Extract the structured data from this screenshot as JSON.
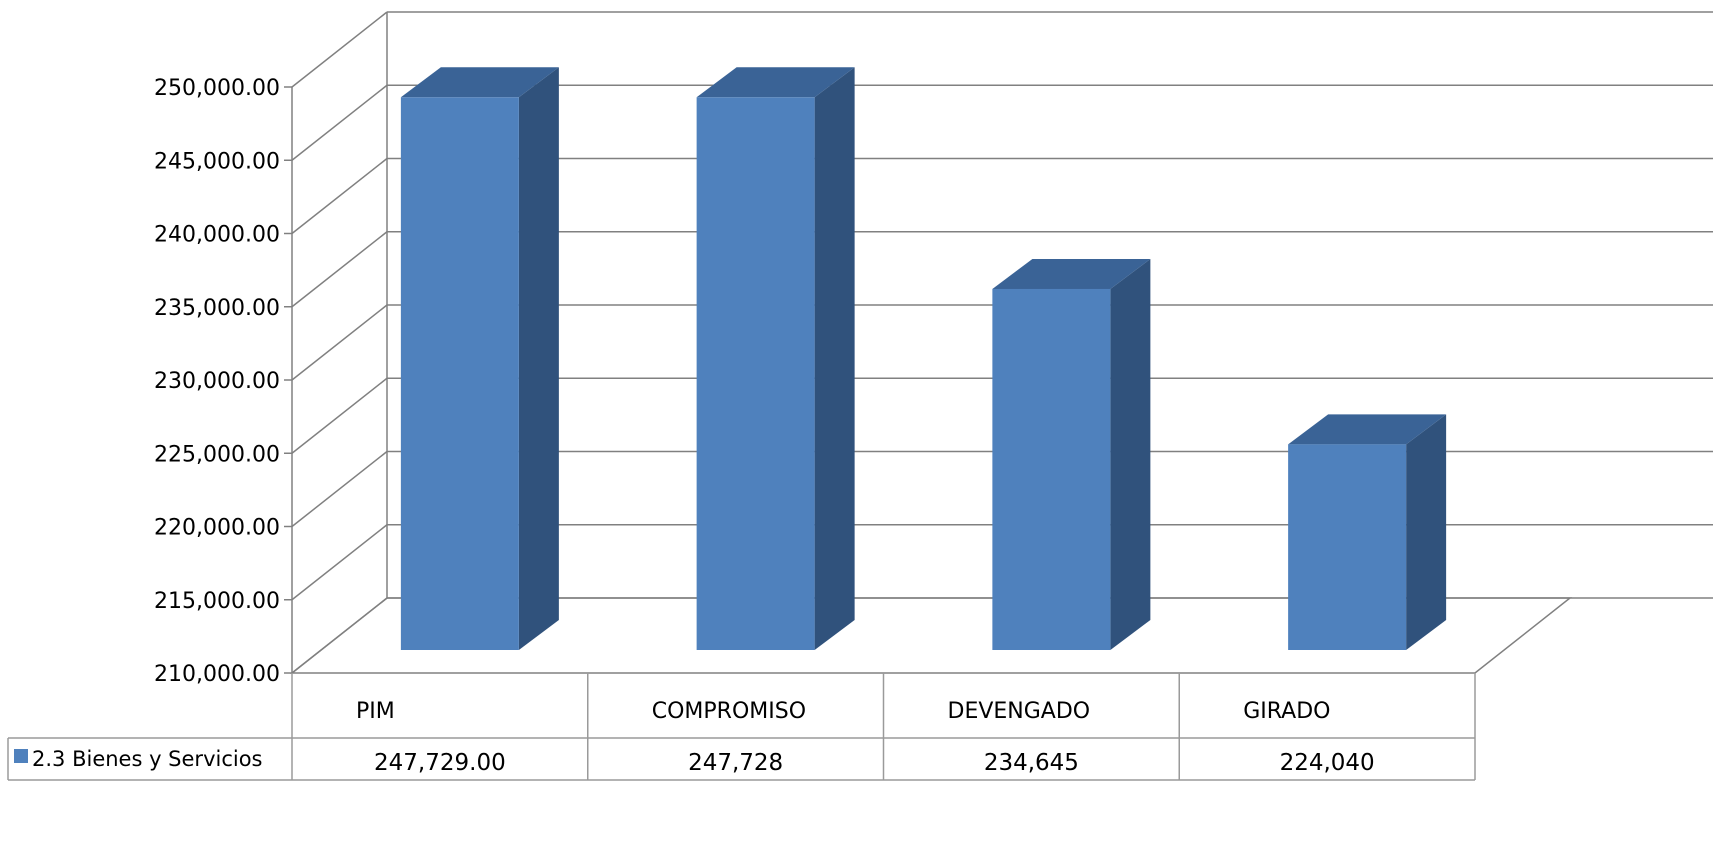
{
  "chart_data": {
    "type": "bar",
    "categories": [
      "PIM",
      "COMPROMISO",
      "DEVENGADO",
      "GIRADO"
    ],
    "series": [
      {
        "name": "2.3 Bienes y Servicios",
        "values": [
          247729,
          247728,
          234645,
          224040
        ],
        "value_labels": [
          "247,729.00",
          "247,728",
          "234,645",
          "224,040"
        ]
      }
    ],
    "ylim": [
      210000,
      250000
    ],
    "y_ticks": [
      210000,
      215000,
      220000,
      225000,
      230000,
      235000,
      240000,
      245000,
      250000
    ],
    "y_tick_labels": [
      "210,000.00",
      "215,000.00",
      "220,000.00",
      "225,000.00",
      "230,000.00",
      "235,000.00",
      "240,000.00",
      "245,000.00",
      "250,000.00"
    ],
    "grid": true,
    "style": "3d-column",
    "data_table": true,
    "colors": {
      "bar_front": "#4f81bd",
      "bar_side": "#30527c",
      "bar_top": "#3a6396",
      "grid": "#808080",
      "table_border": "#9a9a9a"
    }
  }
}
